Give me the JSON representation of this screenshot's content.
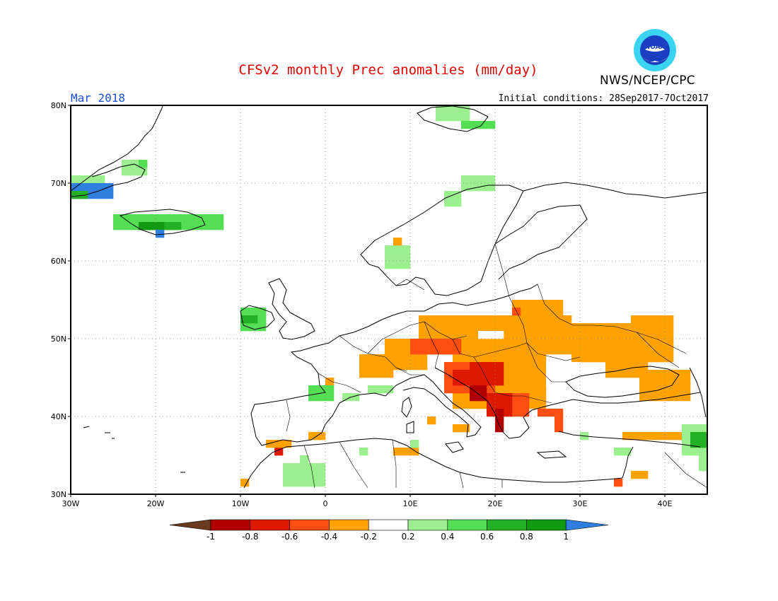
{
  "header": {
    "title": "CFSv2 monthly Prec anomalies (mm/day)",
    "agency": "NWS/NCEP/CPC",
    "logo_text": "NOAA",
    "month": "Mar 2018",
    "initial_conditions": "Initial conditions: 28Sep2017-7Oct2017"
  },
  "map": {
    "lon_range": [
      -30,
      45
    ],
    "lat_range": [
      30,
      80
    ],
    "lat_labels": [
      "80N",
      "70N",
      "60N",
      "50N",
      "40N",
      "30N"
    ],
    "lon_labels": [
      "30W",
      "20W",
      "10W",
      "0",
      "10E",
      "20E",
      "30E",
      "40E"
    ]
  },
  "legend": {
    "labels": [
      "-1",
      "-0.8",
      "-0.6",
      "-0.4",
      "-0.2",
      "0.2",
      "0.4",
      "0.6",
      "0.8",
      "1"
    ],
    "colors": {
      "below_min": "#6b3a1e",
      "-1_-0.8": "#b20000",
      "-0.8_-0.6": "#dd1a00",
      "-0.6_-0.4": "#ff4e12",
      "-0.4_-0.2": "#ffa200",
      "-0.2_0.2": "#ffffff",
      "0.2_0.4": "#9bef8e",
      "0.4_0.6": "#53de53",
      "0.6_0.8": "#24b024",
      "0.8_1": "#0f9a0f",
      "above_max": "#2f7fe0"
    }
  }
}
